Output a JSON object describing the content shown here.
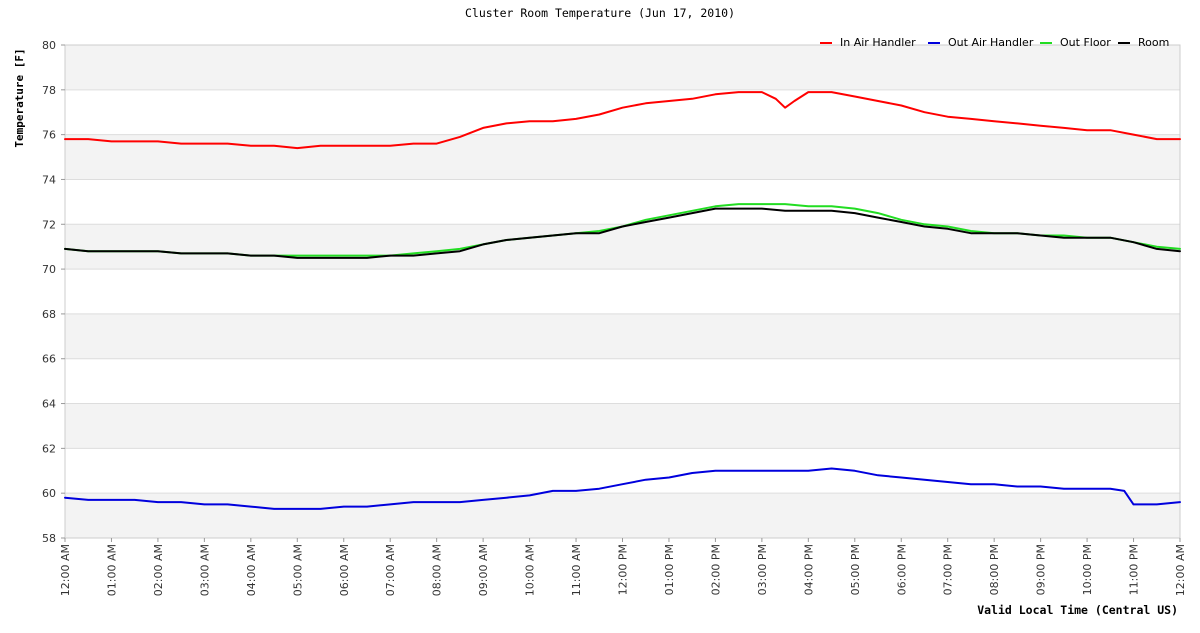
{
  "chart_data": {
    "type": "line",
    "title": "Cluster Room Temperature (Jun 17, 2010)",
    "xlabel": "Valid Local Time (Central US)",
    "ylabel": "Temperature [F]",
    "ylim": [
      58,
      80
    ],
    "yticks": [
      58,
      60,
      62,
      64,
      66,
      68,
      70,
      72,
      74,
      76,
      78,
      80
    ],
    "xlim": [
      0,
      24
    ],
    "xticks": [
      {
        "hour": 0,
        "label": "12:00 AM"
      },
      {
        "hour": 1,
        "label": "01:00 AM"
      },
      {
        "hour": 2,
        "label": "02:00 AM"
      },
      {
        "hour": 3,
        "label": "03:00 AM"
      },
      {
        "hour": 4,
        "label": "04:00 AM"
      },
      {
        "hour": 5,
        "label": "05:00 AM"
      },
      {
        "hour": 6,
        "label": "06:00 AM"
      },
      {
        "hour": 7,
        "label": "07:00 AM"
      },
      {
        "hour": 8,
        "label": "08:00 AM"
      },
      {
        "hour": 9,
        "label": "09:00 AM"
      },
      {
        "hour": 10,
        "label": "10:00 AM"
      },
      {
        "hour": 11,
        "label": "11:00 AM"
      },
      {
        "hour": 12,
        "label": "12:00 PM"
      },
      {
        "hour": 13,
        "label": "01:00 PM"
      },
      {
        "hour": 14,
        "label": "02:00 PM"
      },
      {
        "hour": 15,
        "label": "03:00 PM"
      },
      {
        "hour": 16,
        "label": "04:00 PM"
      },
      {
        "hour": 17,
        "label": "05:00 PM"
      },
      {
        "hour": 18,
        "label": "06:00 PM"
      },
      {
        "hour": 19,
        "label": "07:00 PM"
      },
      {
        "hour": 20,
        "label": "08:00 PM"
      },
      {
        "hour": 21,
        "label": "09:00 PM"
      },
      {
        "hour": 22,
        "label": "10:00 PM"
      },
      {
        "hour": 23,
        "label": "11:00 PM"
      },
      {
        "hour": 24,
        "label": "12:00 AM"
      }
    ],
    "grid": true,
    "legend_position": "top-right",
    "series": [
      {
        "name": "In Air Handler",
        "color": "#ff0000",
        "x": [
          0,
          0.5,
          1,
          1.5,
          2,
          2.5,
          3,
          3.5,
          4,
          4.5,
          5,
          5.5,
          6,
          6.5,
          7,
          7.5,
          8,
          8.5,
          9,
          9.5,
          10,
          10.5,
          11,
          11.5,
          12,
          12.5,
          13,
          13.5,
          14,
          14.5,
          15,
          15.3,
          15.5,
          15.7,
          16,
          16.5,
          17,
          17.5,
          18,
          18.5,
          19,
          19.5,
          20,
          20.5,
          21,
          21.5,
          22,
          22.5,
          23,
          23.5,
          24
        ],
        "y": [
          75.8,
          75.8,
          75.7,
          75.7,
          75.7,
          75.6,
          75.6,
          75.6,
          75.5,
          75.5,
          75.4,
          75.5,
          75.5,
          75.5,
          75.5,
          75.6,
          75.6,
          75.9,
          76.3,
          76.5,
          76.6,
          76.6,
          76.7,
          76.9,
          77.2,
          77.4,
          77.5,
          77.6,
          77.8,
          77.9,
          77.9,
          77.6,
          77.2,
          77.5,
          77.9,
          77.9,
          77.7,
          77.5,
          77.3,
          77.0,
          76.8,
          76.7,
          76.6,
          76.5,
          76.4,
          76.3,
          76.2,
          76.2,
          76.0,
          75.8,
          75.8
        ]
      },
      {
        "name": "Out Air Handler",
        "color": "#0000dd",
        "x": [
          0,
          0.5,
          1,
          1.5,
          2,
          2.5,
          3,
          3.5,
          4,
          4.5,
          5,
          5.5,
          6,
          6.5,
          7,
          7.5,
          8,
          8.5,
          9,
          9.5,
          10,
          10.5,
          11,
          11.5,
          12,
          12.5,
          13,
          13.5,
          14,
          14.5,
          15,
          15.5,
          16,
          16.5,
          17,
          17.5,
          18,
          18.5,
          19,
          19.5,
          20,
          20.5,
          21,
          21.5,
          22,
          22.5,
          22.8,
          23,
          23.5,
          24
        ],
        "y": [
          59.8,
          59.7,
          59.7,
          59.7,
          59.6,
          59.6,
          59.5,
          59.5,
          59.4,
          59.3,
          59.3,
          59.3,
          59.4,
          59.4,
          59.5,
          59.6,
          59.6,
          59.6,
          59.7,
          59.8,
          59.9,
          60.1,
          60.1,
          60.2,
          60.4,
          60.6,
          60.7,
          60.9,
          61.0,
          61.0,
          61.0,
          61.0,
          61.0,
          61.1,
          61.0,
          60.8,
          60.7,
          60.6,
          60.5,
          60.4,
          60.4,
          60.3,
          60.3,
          60.2,
          60.2,
          60.2,
          60.1,
          59.5,
          59.5,
          59.6
        ]
      },
      {
        "name": "Out Floor",
        "color": "#22dd22",
        "x": [
          0,
          0.5,
          1,
          1.5,
          2,
          2.5,
          3,
          3.5,
          4,
          4.5,
          5,
          5.5,
          6,
          6.5,
          7,
          7.5,
          8,
          8.5,
          9,
          9.5,
          10,
          10.5,
          11,
          11.5,
          12,
          12.5,
          13,
          13.5,
          14,
          14.5,
          15,
          15.5,
          16,
          16.5,
          17,
          17.5,
          18,
          18.5,
          19,
          19.5,
          20,
          20.5,
          21,
          21.5,
          22,
          22.5,
          23,
          23.5,
          24
        ],
        "y": [
          70.9,
          70.8,
          70.8,
          70.8,
          70.8,
          70.7,
          70.7,
          70.7,
          70.6,
          70.6,
          70.6,
          70.6,
          70.6,
          70.6,
          70.6,
          70.7,
          70.8,
          70.9,
          71.1,
          71.3,
          71.4,
          71.5,
          71.6,
          71.7,
          71.9,
          72.2,
          72.4,
          72.6,
          72.8,
          72.9,
          72.9,
          72.9,
          72.8,
          72.8,
          72.7,
          72.5,
          72.2,
          72.0,
          71.9,
          71.7,
          71.6,
          71.6,
          71.5,
          71.5,
          71.4,
          71.4,
          71.2,
          71.0,
          70.9
        ]
      },
      {
        "name": "Room",
        "color": "#000000",
        "x": [
          0,
          0.5,
          1,
          1.5,
          2,
          2.5,
          3,
          3.5,
          4,
          4.5,
          5,
          5.5,
          6,
          6.5,
          7,
          7.5,
          8,
          8.5,
          9,
          9.5,
          10,
          10.5,
          11,
          11.5,
          12,
          12.5,
          13,
          13.5,
          14,
          14.5,
          15,
          15.5,
          16,
          16.5,
          17,
          17.5,
          18,
          18.5,
          19,
          19.5,
          20,
          20.5,
          21,
          21.5,
          22,
          22.5,
          23,
          23.5,
          24
        ],
        "y": [
          70.9,
          70.8,
          70.8,
          70.8,
          70.8,
          70.7,
          70.7,
          70.7,
          70.6,
          70.6,
          70.5,
          70.5,
          70.5,
          70.5,
          70.6,
          70.6,
          70.7,
          70.8,
          71.1,
          71.3,
          71.4,
          71.5,
          71.6,
          71.6,
          71.9,
          72.1,
          72.3,
          72.5,
          72.7,
          72.7,
          72.7,
          72.6,
          72.6,
          72.6,
          72.5,
          72.3,
          72.1,
          71.9,
          71.8,
          71.6,
          71.6,
          71.6,
          71.5,
          71.4,
          71.4,
          71.4,
          71.2,
          70.9,
          70.8
        ]
      }
    ]
  }
}
